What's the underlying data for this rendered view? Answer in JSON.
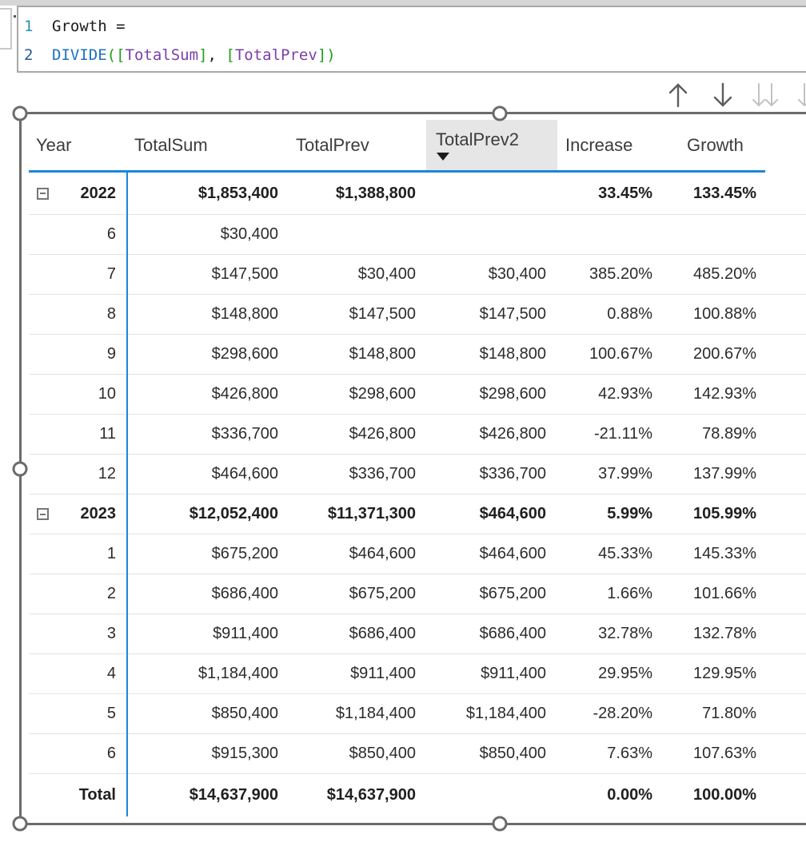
{
  "colors": {
    "accent_blue": "#1a86db",
    "header_highlight": "#e6e6e6",
    "selection_gray": "#6b6b6b",
    "drill_enabled": "#5c5c5c",
    "drill_disabled": "#c2c2c2"
  },
  "formula_bar": {
    "lines": [
      {
        "number": "1",
        "number_color": "#2b91af",
        "tokens": [
          {
            "text": "Growth =",
            "color": "#1b1b1b"
          }
        ]
      },
      {
        "number": "2",
        "number_color": "#2b5797",
        "tokens": [
          {
            "text": "DIVIDE",
            "color": "#1f6fc5"
          },
          {
            "text": "(",
            "color": "#1ca01c"
          },
          {
            "text": "[",
            "color": "#1ca01c"
          },
          {
            "text": "TotalSum",
            "color": "#7b3eab"
          },
          {
            "text": "]",
            "color": "#1ca01c"
          },
          {
            "text": ", ",
            "color": "#1b1b1b"
          },
          {
            "text": "[",
            "color": "#1ca01c"
          },
          {
            "text": "TotalPrev",
            "color": "#7b3eab"
          },
          {
            "text": "]",
            "color": "#1ca01c"
          },
          {
            "text": ")",
            "color": "#1ca01c"
          }
        ]
      }
    ]
  },
  "drill_controls": {
    "icons": [
      {
        "name": "drill-up-icon",
        "glyph": "arrow-up",
        "state": "enabled"
      },
      {
        "name": "drill-down-icon",
        "glyph": "arrow-down",
        "state": "enabled"
      },
      {
        "name": "go-to-next-level-icon",
        "glyph": "double-arrow-down",
        "state": "disabled"
      },
      {
        "name": "expand-all-icon",
        "glyph": "double-arrow-down",
        "state": "disabled"
      }
    ]
  },
  "matrix": {
    "columns": [
      "Year",
      "TotalSum",
      "TotalPrev",
      "TotalPrev2",
      "Increase",
      "Growth"
    ],
    "sorted_column": "TotalPrev2",
    "sort_direction": "descending",
    "rows": [
      {
        "year": "2022",
        "bold": true,
        "expandable": true,
        "cells": [
          "$1,853,400",
          "$1,388,800",
          "",
          "33.45%",
          "133.45%"
        ]
      },
      {
        "year": "6",
        "cells": [
          "$30,400",
          "",
          "",
          "",
          ""
        ]
      },
      {
        "year": "7",
        "cells": [
          "$147,500",
          "$30,400",
          "$30,400",
          "385.20%",
          "485.20%"
        ]
      },
      {
        "year": "8",
        "cells": [
          "$148,800",
          "$147,500",
          "$147,500",
          "0.88%",
          "100.88%"
        ]
      },
      {
        "year": "9",
        "cells": [
          "$298,600",
          "$148,800",
          "$148,800",
          "100.67%",
          "200.67%"
        ]
      },
      {
        "year": "10",
        "cells": [
          "$426,800",
          "$298,600",
          "$298,600",
          "42.93%",
          "142.93%"
        ]
      },
      {
        "year": "11",
        "cells": [
          "$336,700",
          "$426,800",
          "$426,800",
          "-21.11%",
          "78.89%"
        ]
      },
      {
        "year": "12",
        "cells": [
          "$464,600",
          "$336,700",
          "$336,700",
          "37.99%",
          "137.99%"
        ]
      },
      {
        "year": "2023",
        "bold": true,
        "expandable": true,
        "cells": [
          "$12,052,400",
          "$11,371,300",
          "$464,600",
          "5.99%",
          "105.99%"
        ]
      },
      {
        "year": "1",
        "cells": [
          "$675,200",
          "$464,600",
          "$464,600",
          "45.33%",
          "145.33%"
        ]
      },
      {
        "year": "2",
        "cells": [
          "$686,400",
          "$675,200",
          "$675,200",
          "1.66%",
          "101.66%"
        ]
      },
      {
        "year": "3",
        "cells": [
          "$911,400",
          "$686,400",
          "$686,400",
          "32.78%",
          "132.78%"
        ]
      },
      {
        "year": "4",
        "cells": [
          "$1,184,400",
          "$911,400",
          "$911,400",
          "29.95%",
          "129.95%"
        ]
      },
      {
        "year": "5",
        "cells": [
          "$850,400",
          "$1,184,400",
          "$1,184,400",
          "-28.20%",
          "71.80%"
        ]
      },
      {
        "year": "6",
        "cells": [
          "$915,300",
          "$850,400",
          "$850,400",
          "7.63%",
          "107.63%"
        ]
      },
      {
        "year": "Total",
        "bold": true,
        "total": true,
        "cells": [
          "$14,637,900",
          "$14,637,900",
          "",
          "0.00%",
          "100.00%"
        ]
      }
    ]
  }
}
